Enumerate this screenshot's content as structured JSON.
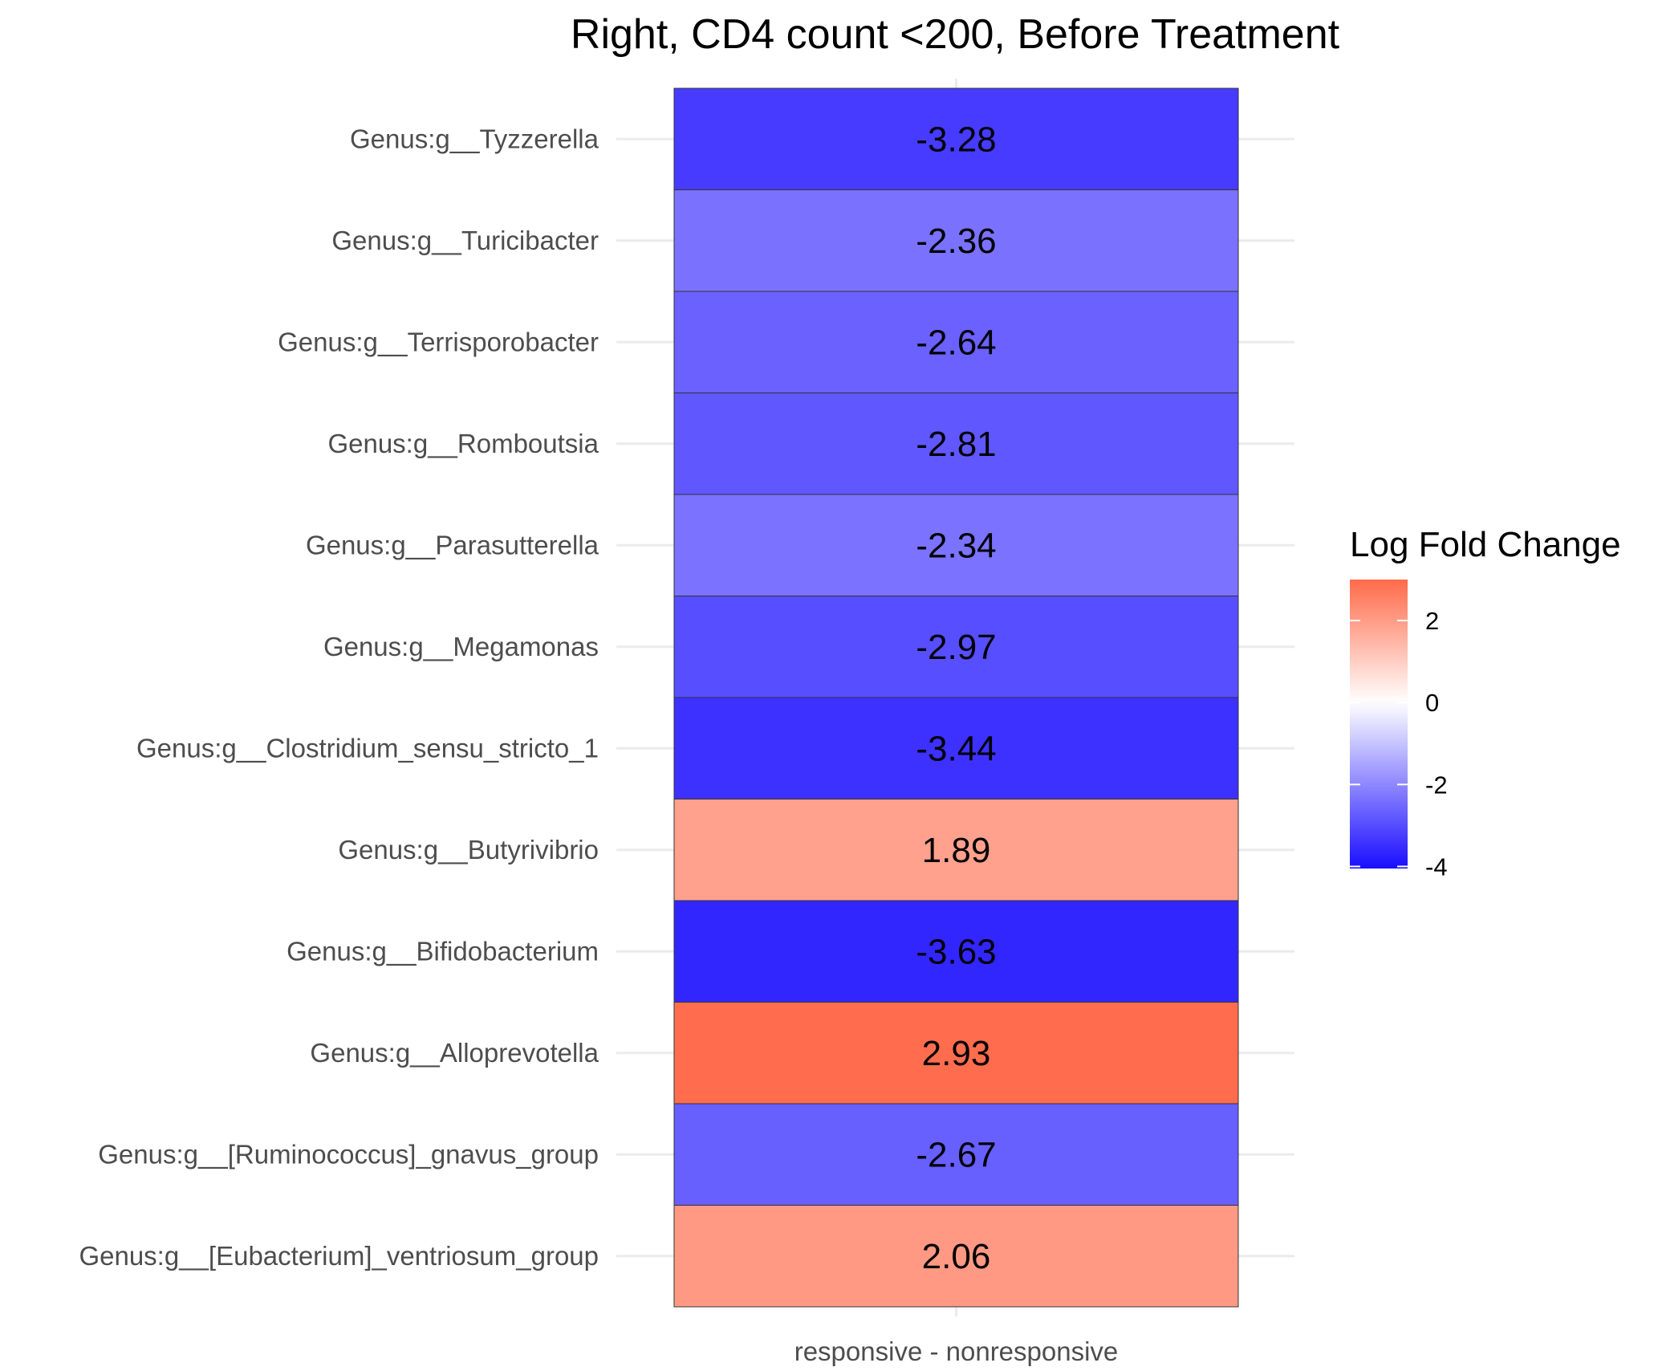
{
  "chart_data": {
    "type": "heatmap",
    "title": "Right, CD4 count <200, Before Treatment",
    "xlabel": "",
    "ylabel": "",
    "x_categories": [
      "responsive - nonresponsive"
    ],
    "y_categories": [
      "Genus:g__Tyzzerella",
      "Genus:g__Turicibacter",
      "Genus:g__Terrisporobacter",
      "Genus:g__Romboutsia",
      "Genus:g__Parasutterella",
      "Genus:g__Megamonas",
      "Genus:g__Clostridium_sensu_stricto_1",
      "Genus:g__Butyrivibrio",
      "Genus:g__Bifidobacterium",
      "Genus:g__Alloprevotella",
      "Genus:g__[Ruminococcus]_gnavus_group",
      "Genus:g__[Eubacterium]_ventriosum_group"
    ],
    "values": [
      -3.28,
      -2.36,
      -2.64,
      -2.81,
      -2.34,
      -2.97,
      -3.44,
      1.89,
      -3.63,
      2.93,
      -2.67,
      2.06
    ],
    "value_labels": [
      "-3.28",
      "-2.36",
      "-2.64",
      "-2.81",
      "-2.34",
      "-2.97",
      "-3.44",
      "1.89",
      "-3.63",
      "2.93",
      "-2.67",
      "2.06"
    ],
    "legend": {
      "title": "Log Fold Change",
      "placement": "right",
      "ticks": [
        2,
        0,
        -2,
        -4
      ],
      "tick_labels": [
        "2",
        "0",
        "-2",
        "-4"
      ],
      "range": [
        -4.05,
        3.0
      ]
    },
    "color_scale": {
      "low": "#1a0dff",
      "mid": "#ffffff",
      "high": "#ff6a4a",
      "midpoint": 0
    },
    "grid": true
  }
}
